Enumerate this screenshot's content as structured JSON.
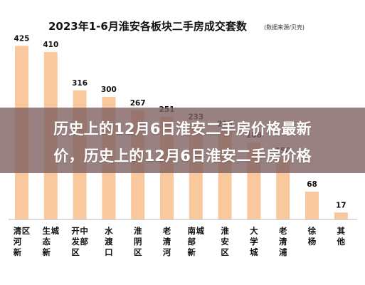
{
  "chart_data": {
    "type": "bar",
    "title": "2023年1-6月淮安各板块二手房成交套数",
    "source_note": "(数据来源/贝壳)",
    "categories": [
      "清河新区",
      "生态新城",
      "开发区中部",
      "水渡口",
      "淮阴区",
      "老清河",
      "南部新城",
      "淮安区",
      "大学城",
      "老清浦",
      "徐杨",
      "其他"
    ],
    "values": [
      425,
      410,
      316,
      300,
      267,
      251,
      233,
      215,
      188,
      150,
      68,
      17
    ],
    "ylim": [
      0,
      450
    ],
    "grid": false,
    "bar_color": "#f9c89d"
  },
  "banner": {
    "line1": "历史上的12月6日淮安二手房价格最新",
    "line2": "价，历史上的12月6日淮安二手房价格",
    "color": "#806262"
  }
}
